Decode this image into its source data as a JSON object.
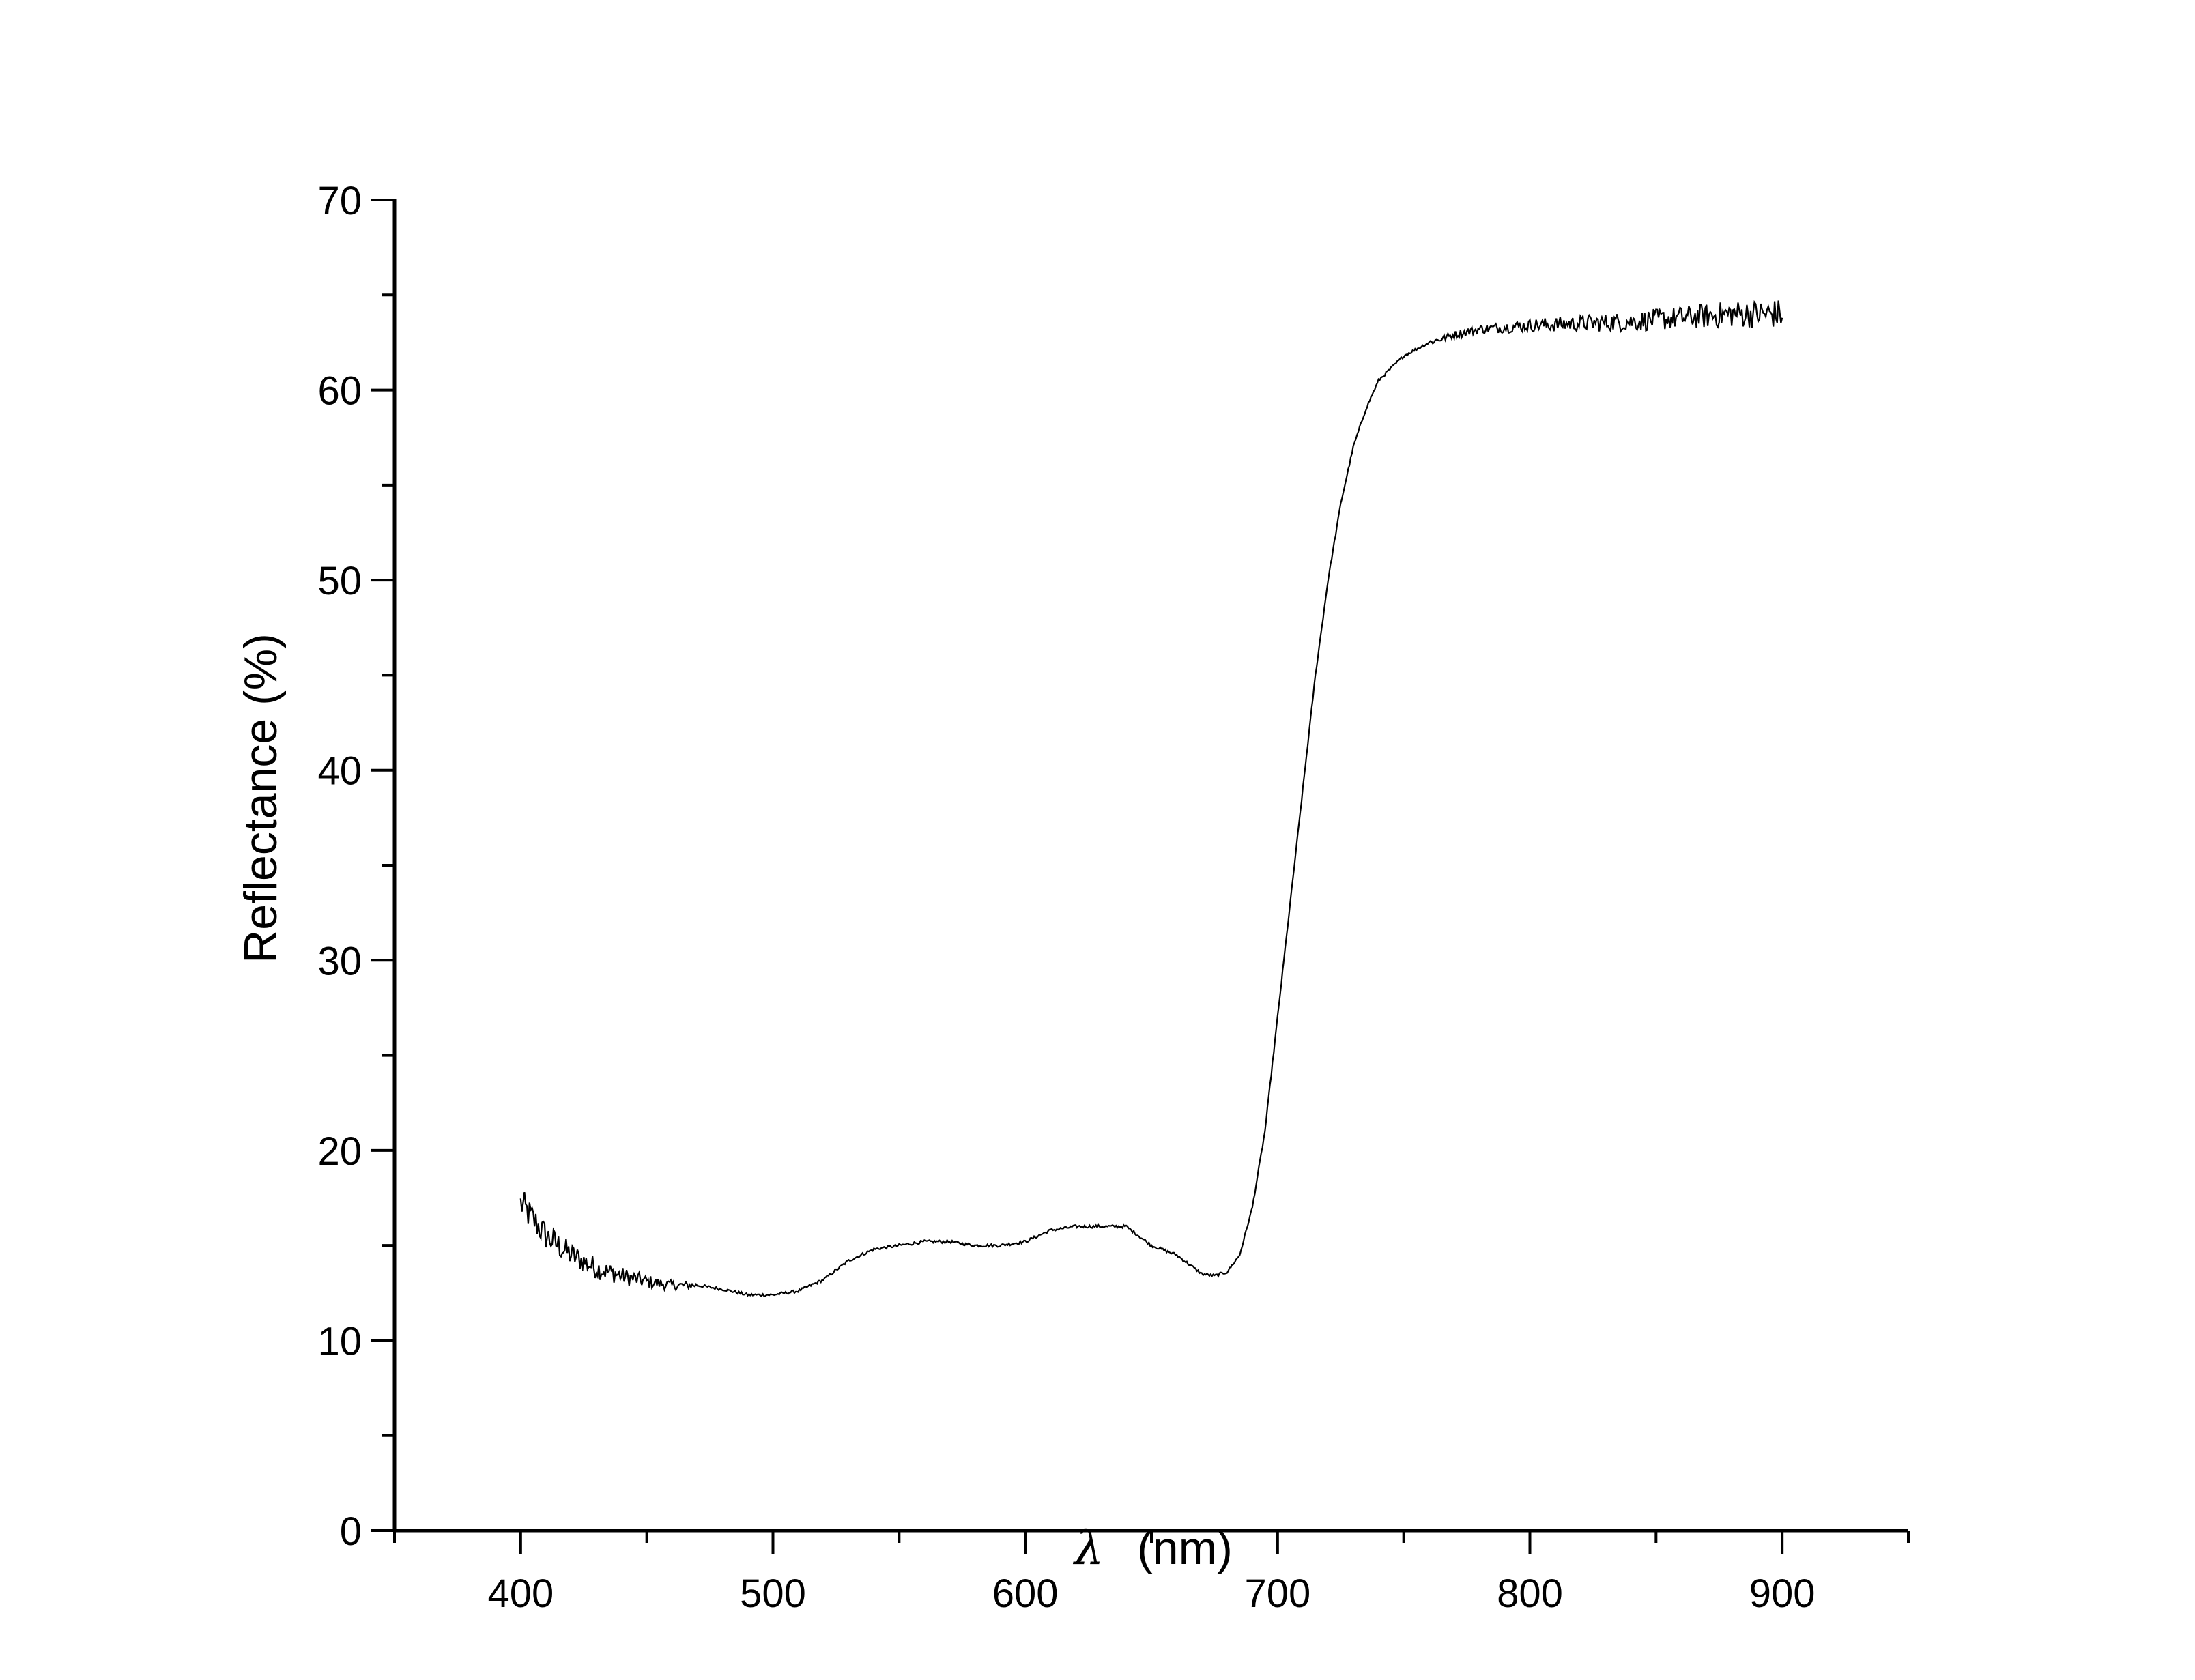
{
  "chart_data": {
    "type": "line",
    "title": "",
    "xlabel_symbol": "λ",
    "xlabel_unit": "(nm)",
    "ylabel": "Reflectance (%)",
    "xlim": [
      350,
      950
    ],
    "ylim": [
      0,
      70
    ],
    "xticks": [
      400,
      500,
      600,
      700,
      800,
      900
    ],
    "yticks": [
      0,
      10,
      20,
      30,
      40,
      50,
      60,
      70
    ],
    "x_minor_step": 50,
    "y_minor_step": 5,
    "grid": false,
    "legend": "none",
    "line_color": "#000000",
    "series": [
      {
        "name": "Reflectance",
        "x": [
          400,
          410,
          420,
          430,
          440,
          450,
          460,
          470,
          480,
          490,
          500,
          510,
          520,
          530,
          540,
          550,
          560,
          570,
          580,
          590,
          600,
          610,
          620,
          630,
          640,
          650,
          660,
          670,
          675,
          680,
          685,
          690,
          695,
          700,
          705,
          710,
          715,
          720,
          725,
          730,
          735,
          740,
          750,
          760,
          770,
          780,
          790,
          800,
          820,
          840,
          860,
          880,
          900
        ],
        "values": [
          17.2,
          15.5,
          14.5,
          13.8,
          13.4,
          13.1,
          12.9,
          12.9,
          12.7,
          12.4,
          12.4,
          12.6,
          13.2,
          14.2,
          14.8,
          15.0,
          15.2,
          15.2,
          15.0,
          15.0,
          15.2,
          15.8,
          16.0,
          16.0,
          16.0,
          15.0,
          14.5,
          13.5,
          13.4,
          13.6,
          14.5,
          17.0,
          21.0,
          27.0,
          33.0,
          39.0,
          45.0,
          50.0,
          54.0,
          57.0,
          59.0,
          60.5,
          61.8,
          62.5,
          62.9,
          63.2,
          63.3,
          63.4,
          63.5,
          63.6,
          63.8,
          64.0,
          64.0
        ]
      }
    ]
  }
}
